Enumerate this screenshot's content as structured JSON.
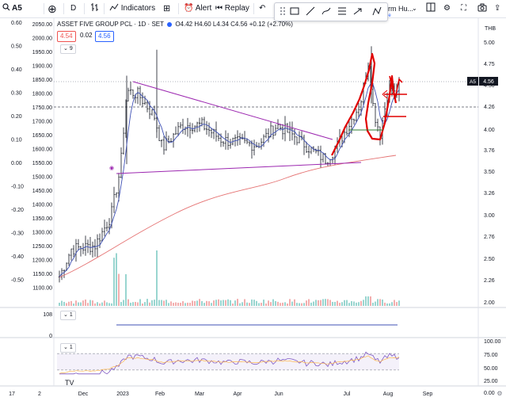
{
  "toolbar": {
    "symbol": "A5",
    "interval": "D",
    "indicators_label": "Indicators",
    "alert_label": "Alert",
    "replay_label": "Replay",
    "right_text": "erm Hu...",
    "right_sub": "ame"
  },
  "legend": {
    "name": "ASSET FIVE GROUP PCL · 1D · SET",
    "ohlc": "O4.42 H4.60 L4.34 C4.56 +0.12 (+2.70%)",
    "sell_price": "4.54",
    "spread": "0.02",
    "buy_price": "4.56",
    "collapse_count": "9"
  },
  "left_axis": [
    "0.60",
    "0.50",
    "0.40",
    "0.30",
    "0.20",
    "0.10",
    "0.00",
    "-0.10",
    "-0.20",
    "-0.30",
    "-0.40",
    "-0.50"
  ],
  "index_axis": [
    "2050.00",
    "2000.00",
    "1950.00",
    "1900.00",
    "1850.00",
    "1800.00",
    "1750.00",
    "1700.00",
    "1650.00",
    "1600.00",
    "1550.00",
    "1500.00",
    "1450.00",
    "1400.00",
    "1350.00",
    "1300.00",
    "1250.00",
    "1200.00",
    "1150.00",
    "1100.00"
  ],
  "right_axis": {
    "currency": "THB",
    "ticks": [
      "5.00",
      "4.75",
      "4.50",
      "4.26",
      "4.00",
      "3.76",
      "3.50",
      "3.26",
      "3.00",
      "2.76",
      "2.50",
      "2.26",
      "2.00"
    ],
    "symbol_label": "A5",
    "last_price": "4.56"
  },
  "pane2": {
    "left_value": "108",
    "badge": "1"
  },
  "pane3": {
    "badge": "1",
    "ticks": [
      "100.00",
      "75.00",
      "50.00",
      "25.00",
      "0.00"
    ],
    "left_marker": "8"
  },
  "time_axis": [
    "17",
    "2",
    "Dec",
    "2023",
    "Feb",
    "Mar",
    "Apr",
    "Jun",
    "Jul",
    "Aug",
    "Sep"
  ],
  "colors": {
    "up": "#26a69a",
    "down": "#ef5350",
    "ma": "#3f51b5",
    "trend": "#9c27b0",
    "ma_long": "#e57373",
    "drawing": "#e00000",
    "rsi": "#7e57c2"
  }
}
